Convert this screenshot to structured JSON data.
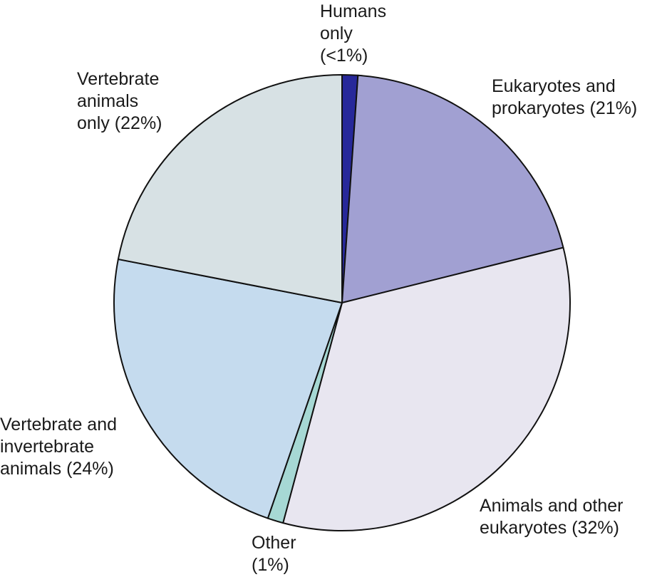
{
  "chart_data": {
    "type": "pie",
    "title": "",
    "slices": [
      {
        "label_lines": [
          "Humans",
          "only",
          "(<1%)"
        ],
        "value": 1,
        "color": "#27289a"
      },
      {
        "label_lines": [
          "Eukaryotes and",
          "prokaryotes (21%)"
        ],
        "value": 21,
        "color": "#a1a0d2"
      },
      {
        "label_lines": [
          "Animals and other",
          "eukaryotes (32%)"
        ],
        "value": 32,
        "color": "#e8e6f0"
      },
      {
        "label_lines": [
          "Other",
          "(1%)"
        ],
        "value": 1,
        "color": "#a6d8d4"
      },
      {
        "label_lines": [
          "Vertebrate and",
          "invertebrate",
          "animals (24%)"
        ],
        "value": 24,
        "color": "#c5dbee"
      },
      {
        "label_lines": [
          "Vertebrate",
          "animals",
          "only (22%)"
        ],
        "value": 22,
        "color": "#d7e1e4"
      }
    ],
    "start": "top",
    "direction": "clockwise",
    "legend": "none"
  }
}
